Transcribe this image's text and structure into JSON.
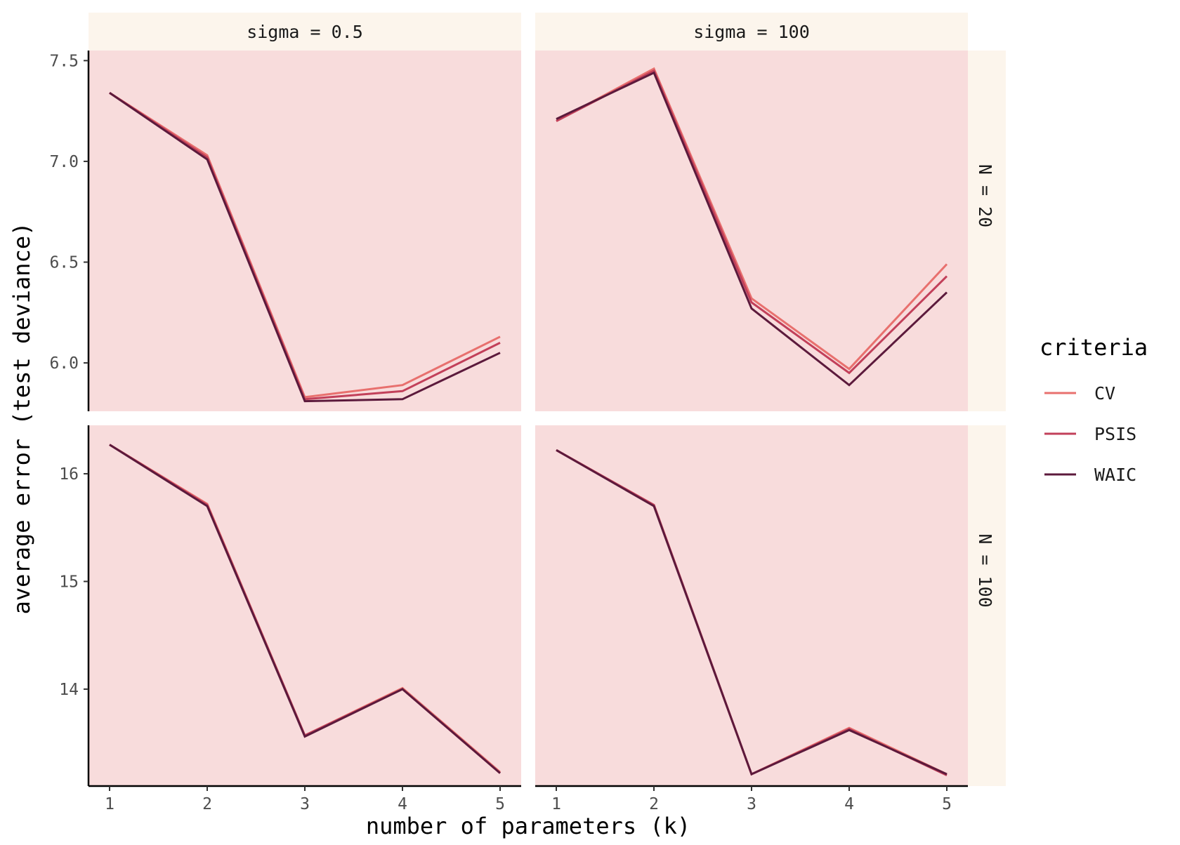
{
  "chart_data": {
    "type": "line",
    "layout": "facet-grid",
    "x_axis_label": "number of parameters (k)",
    "y_axis_label": "average error (test deviance)",
    "x": [
      1,
      2,
      3,
      4,
      5
    ],
    "x_ticks": [
      "1",
      "2",
      "3",
      "4",
      "5"
    ],
    "legend": {
      "title": "criteria",
      "position": "right",
      "entries": [
        {
          "name": "CV",
          "color": "#e8706e"
        },
        {
          "name": "PSIS",
          "color": "#c2405a"
        },
        {
          "name": "WAIC",
          "color": "#5c1a3c"
        }
      ]
    },
    "panel_background": "#f8dcdc",
    "strip_background": "#fcf5ec",
    "column_strips": [
      "sigma = 0.5",
      "sigma = 100"
    ],
    "row_strips": [
      "N = 20",
      "N = 100"
    ],
    "rows": [
      {
        "ylim": [
          5.76,
          7.55
        ],
        "y_ticks": [
          6.0,
          6.5,
          7.0,
          7.5
        ],
        "y_tick_labels": [
          "6.0",
          "6.5",
          "7.0",
          "7.5"
        ],
        "panels": [
          {
            "column_label": "sigma = 0.5",
            "row_label": "N = 20",
            "series": [
              {
                "name": "CV",
                "values": [
                  7.34,
                  7.03,
                  5.83,
                  5.89,
                  6.13
                ]
              },
              {
                "name": "PSIS",
                "values": [
                  7.34,
                  7.02,
                  5.82,
                  5.86,
                  6.1
                ]
              },
              {
                "name": "WAIC",
                "values": [
                  7.34,
                  7.01,
                  5.81,
                  5.82,
                  6.05
                ]
              }
            ]
          },
          {
            "column_label": "sigma = 100",
            "row_label": "N = 20",
            "series": [
              {
                "name": "CV",
                "values": [
                  7.2,
                  7.46,
                  6.32,
                  5.97,
                  6.49
                ]
              },
              {
                "name": "PSIS",
                "values": [
                  7.2,
                  7.45,
                  6.3,
                  5.95,
                  6.43
                ]
              },
              {
                "name": "WAIC",
                "values": [
                  7.21,
                  7.44,
                  6.27,
                  5.89,
                  6.35
                ]
              }
            ]
          }
        ]
      },
      {
        "ylim": [
          13.1,
          16.45
        ],
        "y_ticks": [
          14,
          15,
          16
        ],
        "y_tick_labels": [
          "14",
          "15",
          "16"
        ],
        "panels": [
          {
            "column_label": "sigma = 0.5",
            "row_label": "N = 100",
            "series": [
              {
                "name": "CV",
                "values": [
                  16.27,
                  15.72,
                  13.57,
                  14.01,
                  13.23
                ]
              },
              {
                "name": "PSIS",
                "values": [
                  16.27,
                  15.71,
                  13.57,
                  14.0,
                  13.22
                ]
              },
              {
                "name": "WAIC",
                "values": [
                  16.27,
                  15.7,
                  13.56,
                  14.0,
                  13.22
                ]
              }
            ]
          },
          {
            "column_label": "sigma = 100",
            "row_label": "N = 100",
            "series": [
              {
                "name": "CV",
                "values": [
                  16.22,
                  15.71,
                  13.21,
                  13.64,
                  13.21
                ]
              },
              {
                "name": "PSIS",
                "values": [
                  16.22,
                  15.71,
                  13.21,
                  13.63,
                  13.2
                ]
              },
              {
                "name": "WAIC",
                "values": [
                  16.22,
                  15.7,
                  13.21,
                  13.62,
                  13.21
                ]
              }
            ]
          }
        ]
      }
    ]
  }
}
